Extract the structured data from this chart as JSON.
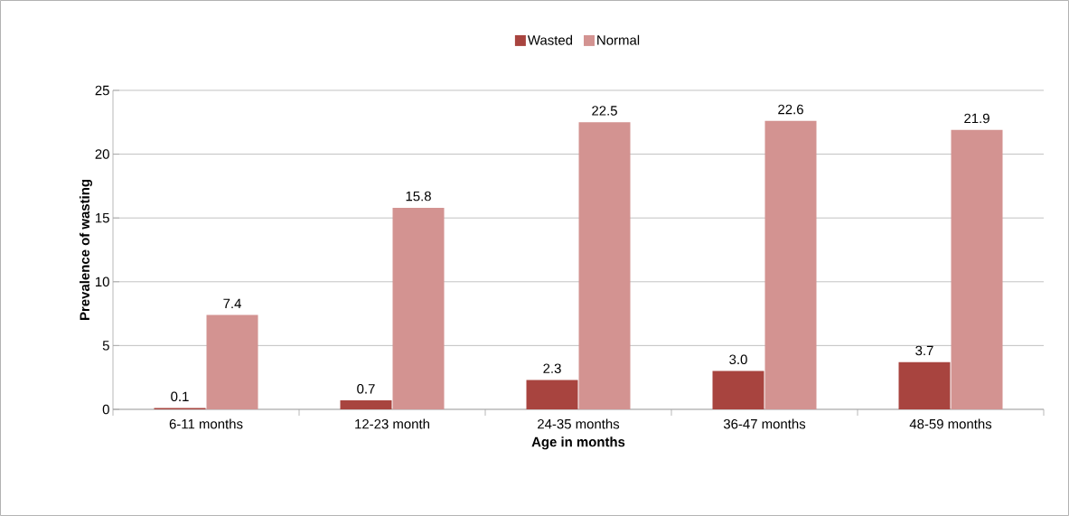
{
  "chart_data": {
    "type": "bar",
    "xlabel": "Age in months",
    "ylabel": "Prevalence of wasting",
    "categories": [
      "6-11 months",
      "12-23 month",
      "24-35 months",
      "36-47 months",
      "48-59 months"
    ],
    "series": [
      {
        "name": "Wasted",
        "color": "#a8443f",
        "values": [
          0.1,
          0.7,
          2.3,
          3.0,
          3.7
        ],
        "value_labels": [
          "0.1",
          "0.7",
          "2.3",
          "3.0",
          "3.7"
        ]
      },
      {
        "name": "Normal",
        "color": "#d39391",
        "values": [
          7.4,
          15.8,
          22.5,
          22.6,
          21.9
        ],
        "value_labels": [
          "7.4",
          "15.8",
          "22.5",
          "22.6",
          "21.9"
        ]
      }
    ],
    "ylim": [
      0,
      25
    ],
    "yticks": [
      0,
      5,
      10,
      15,
      20,
      25
    ],
    "grid": "y",
    "legend": "top"
  }
}
